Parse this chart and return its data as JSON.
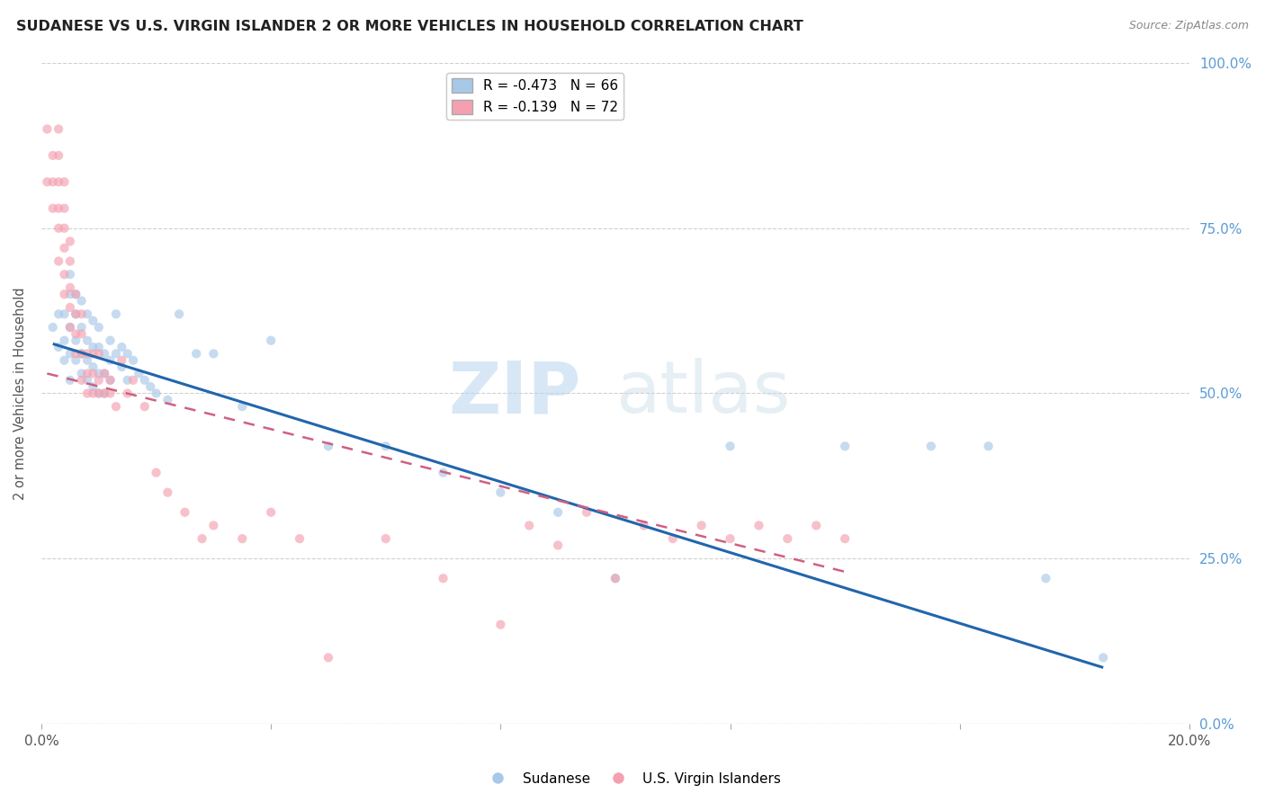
{
  "title": "SUDANESE VS U.S. VIRGIN ISLANDER 2 OR MORE VEHICLES IN HOUSEHOLD CORRELATION CHART",
  "source": "Source: ZipAtlas.com",
  "ylabel": "2 or more Vehicles in Household",
  "xlim": [
    0.0,
    0.2
  ],
  "ylim": [
    0.0,
    1.0
  ],
  "yticks": [
    0.0,
    0.25,
    0.5,
    0.75,
    1.0
  ],
  "ytick_labels_right": [
    "0.0%",
    "25.0%",
    "50.0%",
    "75.0%",
    "100.0%"
  ],
  "xtick_positions": [
    0.0,
    0.04,
    0.08,
    0.12,
    0.16,
    0.2
  ],
  "xtick_labels": [
    "0.0%",
    "",
    "",
    "",
    "",
    "20.0%"
  ],
  "legend_blue_R": "-0.473",
  "legend_blue_N": "66",
  "legend_pink_R": "-0.139",
  "legend_pink_N": "72",
  "blue_color": "#a8c8e8",
  "pink_color": "#f4a0b0",
  "blue_line_color": "#2166ac",
  "pink_line_color": "#d06080",
  "watermark_zip": "ZIP",
  "watermark_atlas": "atlas",
  "sudanese_x": [
    0.002,
    0.003,
    0.003,
    0.004,
    0.004,
    0.004,
    0.005,
    0.005,
    0.005,
    0.005,
    0.005,
    0.006,
    0.006,
    0.006,
    0.006,
    0.007,
    0.007,
    0.007,
    0.007,
    0.008,
    0.008,
    0.008,
    0.008,
    0.009,
    0.009,
    0.009,
    0.009,
    0.01,
    0.01,
    0.01,
    0.01,
    0.011,
    0.011,
    0.011,
    0.012,
    0.012,
    0.012,
    0.013,
    0.013,
    0.014,
    0.014,
    0.015,
    0.015,
    0.016,
    0.017,
    0.018,
    0.019,
    0.02,
    0.022,
    0.024,
    0.027,
    0.03,
    0.035,
    0.04,
    0.05,
    0.06,
    0.07,
    0.08,
    0.09,
    0.1,
    0.12,
    0.14,
    0.155,
    0.165,
    0.175,
    0.185
  ],
  "sudanese_y": [
    0.6,
    0.57,
    0.62,
    0.55,
    0.58,
    0.62,
    0.52,
    0.56,
    0.6,
    0.65,
    0.68,
    0.55,
    0.58,
    0.62,
    0.65,
    0.53,
    0.56,
    0.6,
    0.64,
    0.52,
    0.55,
    0.58,
    0.62,
    0.51,
    0.54,
    0.57,
    0.61,
    0.5,
    0.53,
    0.57,
    0.6,
    0.5,
    0.53,
    0.56,
    0.52,
    0.55,
    0.58,
    0.56,
    0.62,
    0.54,
    0.57,
    0.52,
    0.56,
    0.55,
    0.53,
    0.52,
    0.51,
    0.5,
    0.49,
    0.62,
    0.56,
    0.56,
    0.48,
    0.58,
    0.42,
    0.42,
    0.38,
    0.35,
    0.32,
    0.22,
    0.42,
    0.42,
    0.42,
    0.42,
    0.22,
    0.1
  ],
  "vi_x": [
    0.001,
    0.001,
    0.002,
    0.002,
    0.002,
    0.003,
    0.003,
    0.003,
    0.003,
    0.003,
    0.003,
    0.004,
    0.004,
    0.004,
    0.004,
    0.004,
    0.004,
    0.005,
    0.005,
    0.005,
    0.005,
    0.005,
    0.006,
    0.006,
    0.006,
    0.006,
    0.007,
    0.007,
    0.007,
    0.007,
    0.008,
    0.008,
    0.008,
    0.009,
    0.009,
    0.009,
    0.01,
    0.01,
    0.01,
    0.011,
    0.011,
    0.012,
    0.012,
    0.013,
    0.014,
    0.015,
    0.016,
    0.018,
    0.02,
    0.022,
    0.025,
    0.028,
    0.03,
    0.035,
    0.04,
    0.045,
    0.05,
    0.06,
    0.07,
    0.08,
    0.085,
    0.09,
    0.095,
    0.1,
    0.105,
    0.11,
    0.115,
    0.12,
    0.125,
    0.13,
    0.135,
    0.14
  ],
  "vi_y": [
    0.9,
    0.82,
    0.78,
    0.82,
    0.86,
    0.7,
    0.75,
    0.78,
    0.82,
    0.86,
    0.9,
    0.65,
    0.68,
    0.72,
    0.75,
    0.78,
    0.82,
    0.6,
    0.63,
    0.66,
    0.7,
    0.73,
    0.56,
    0.59,
    0.62,
    0.65,
    0.52,
    0.56,
    0.59,
    0.62,
    0.5,
    0.53,
    0.56,
    0.5,
    0.53,
    0.56,
    0.5,
    0.52,
    0.56,
    0.5,
    0.53,
    0.5,
    0.52,
    0.48,
    0.55,
    0.5,
    0.52,
    0.48,
    0.38,
    0.35,
    0.32,
    0.28,
    0.3,
    0.28,
    0.32,
    0.28,
    0.1,
    0.28,
    0.22,
    0.15,
    0.3,
    0.27,
    0.32,
    0.22,
    0.3,
    0.28,
    0.3,
    0.28,
    0.3,
    0.28,
    0.3,
    0.28
  ],
  "blue_trendline_x": [
    0.002,
    0.185
  ],
  "blue_trendline_y": [
    0.575,
    0.085
  ],
  "pink_trendline_x": [
    0.001,
    0.14
  ],
  "pink_trendline_y": [
    0.53,
    0.23
  ]
}
